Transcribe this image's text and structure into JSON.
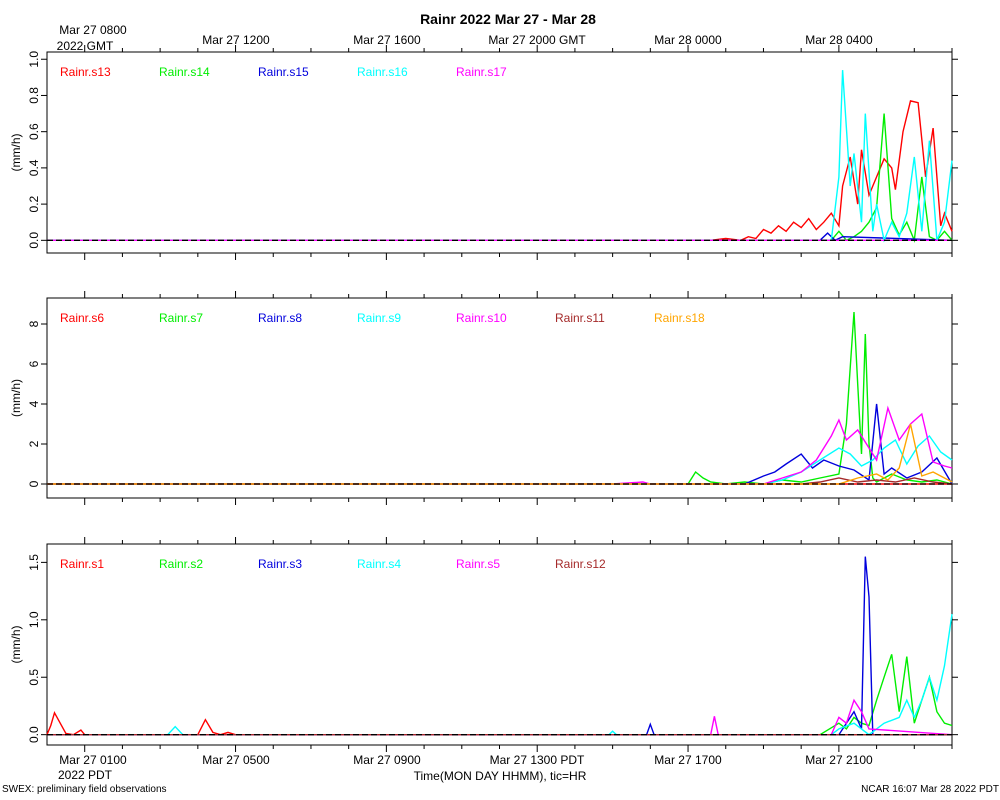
{
  "title": "Rainr 2022 Mar 27 - Mar 28",
  "top_axis_labels": [
    "Mar 27 0800",
    "Mar 27 1200",
    "Mar 27 1600",
    "Mar 27 2000 GMT",
    "Mar 28 0000",
    "Mar 28 0400"
  ],
  "top_axis_year": "2022 GMT",
  "bottom_axis_labels": [
    "Mar 27 0100",
    "Mar 27 0500",
    "Mar 27 0900",
    "Mar 27 1300 PDT",
    "Mar 27 1700",
    "Mar 27 2100"
  ],
  "bottom_axis_year": "2022 PDT",
  "xlabel": "Time(MON DAY HHMM), tic=HR",
  "footer_left": "SWEX: preliminary field observations",
  "footer_right": "NCAR 16:07 Mar 28 2022 PDT",
  "colors": {
    "red": "#ff0000",
    "green": "#00ee00",
    "blue": "#0000dd",
    "cyan": "#00ffff",
    "magenta": "#ff00ff",
    "brown": "#a52a2a",
    "orange": "#ffa500",
    "zero_line": "#000000"
  },
  "chart_data": [
    {
      "type": "line",
      "ylabel": "(mm/h)",
      "ylim": [
        -0.07,
        1.04
      ],
      "yticks": [
        "0.0",
        "0.2",
        "0.4",
        "0.6",
        "0.8",
        "1.0"
      ],
      "ytick_values": [
        0,
        0.2,
        0.4,
        0.6,
        0.8,
        1.0
      ],
      "x_units": "hours since Mar 27 0000 PDT",
      "xlim": [
        0,
        24
      ],
      "series": [
        {
          "name": "Rainr.s13",
          "color": "#ff0000",
          "x": [
            0,
            17.6,
            18.0,
            18.4,
            18.6,
            18.8,
            19.0,
            19.2,
            19.4,
            19.6,
            19.8,
            20.0,
            20.2,
            20.4,
            20.6,
            20.8,
            21.0,
            21.1,
            21.3,
            21.5,
            21.6,
            21.8,
            22.0,
            22.2,
            22.4,
            22.5,
            22.7,
            22.9,
            23.1,
            23.3,
            23.5,
            23.7,
            23.8,
            24.0
          ],
          "y": [
            0,
            0.0,
            0.01,
            0.0,
            0.02,
            0.01,
            0.06,
            0.04,
            0.08,
            0.05,
            0.1,
            0.07,
            0.12,
            0.06,
            0.1,
            0.15,
            0.08,
            0.3,
            0.46,
            0.2,
            0.5,
            0.25,
            0.35,
            0.45,
            0.4,
            0.28,
            0.6,
            0.77,
            0.76,
            0.35,
            0.62,
            0.08,
            0.15,
            0.05
          ]
        },
        {
          "name": "Rainr.s14",
          "color": "#00ee00",
          "x": [
            0,
            20.8,
            21.0,
            21.2,
            21.4,
            21.6,
            21.8,
            22.0,
            22.2,
            22.4,
            22.6,
            22.8,
            23.0,
            23.2,
            23.4,
            23.6,
            23.8,
            24.0
          ],
          "y": [
            0,
            0.0,
            0.05,
            0.0,
            0.02,
            0.05,
            0.1,
            0.18,
            0.7,
            0.12,
            0.03,
            0.1,
            0.0,
            0.35,
            0.02,
            0.0,
            0.05,
            0.0
          ]
        },
        {
          "name": "Rainr.s15",
          "color": "#0000dd",
          "x": [
            0,
            20.5,
            20.7,
            20.9,
            21.1,
            24.0
          ],
          "y": [
            0,
            0.0,
            0.04,
            0.0,
            0.02,
            0.0
          ]
        },
        {
          "name": "Rainr.s16",
          "color": "#00ffff",
          "x": [
            0,
            20.8,
            21.0,
            21.1,
            21.3,
            21.4,
            21.6,
            21.7,
            21.9,
            22.0,
            22.2,
            22.4,
            22.6,
            22.8,
            23.0,
            23.2,
            23.4,
            23.6,
            23.8,
            24.0
          ],
          "y": [
            0,
            0.0,
            0.35,
            0.94,
            0.3,
            0.48,
            0.1,
            0.7,
            0.05,
            0.2,
            0.0,
            0.1,
            0.02,
            0.15,
            0.46,
            0.05,
            0.55,
            0.0,
            0.1,
            0.44
          ]
        },
        {
          "name": "Rainr.s17",
          "color": "#ff00ff",
          "x": [
            0,
            24
          ],
          "y": [
            0,
            0
          ]
        }
      ]
    },
    {
      "type": "line",
      "ylabel": "(mm/h)",
      "ylim": [
        -0.7,
        9.3
      ],
      "yticks": [
        "0",
        "2",
        "4",
        "6",
        "8"
      ],
      "ytick_values": [
        0,
        2,
        4,
        6,
        8
      ],
      "x_units": "hours since Mar 27 0000 PDT",
      "xlim": [
        0,
        24
      ],
      "series": [
        {
          "name": "Rainr.s6",
          "color": "#ff0000",
          "x": [
            0,
            24
          ],
          "y": [
            0,
            0
          ]
        },
        {
          "name": "Rainr.s7",
          "color": "#00ee00",
          "x": [
            0,
            17.0,
            17.2,
            17.4,
            17.6,
            18.0,
            18.5,
            19.0,
            19.5,
            20.0,
            20.5,
            21.0,
            21.2,
            21.4,
            21.5,
            21.6,
            21.7,
            21.8,
            21.9,
            22.0,
            22.4,
            22.8,
            23.2,
            23.6,
            24.0
          ],
          "y": [
            0,
            0.0,
            0.6,
            0.3,
            0.1,
            0.0,
            0.1,
            0.0,
            0.2,
            0.1,
            0.3,
            0.5,
            3.0,
            8.6,
            5.0,
            1.5,
            7.5,
            2.0,
            0.3,
            0.1,
            0.5,
            0.2,
            0.1,
            0.2,
            0.0
          ]
        },
        {
          "name": "Rainr.s8",
          "color": "#0000dd",
          "x": [
            0,
            18.5,
            19.0,
            19.3,
            19.6,
            20.0,
            20.3,
            20.6,
            21.0,
            21.4,
            21.8,
            22.0,
            22.2,
            22.4,
            22.8,
            23.2,
            23.6,
            24.0
          ],
          "y": [
            0,
            0.0,
            0.4,
            0.6,
            1.0,
            1.5,
            0.8,
            1.2,
            0.9,
            0.7,
            0.2,
            4.0,
            0.5,
            0.8,
            0.3,
            0.6,
            1.3,
            0.0
          ]
        },
        {
          "name": "Rainr.s9",
          "color": "#00ffff",
          "x": [
            0,
            19.0,
            19.5,
            20.0,
            20.5,
            21.0,
            21.3,
            21.6,
            21.9,
            22.2,
            22.5,
            22.8,
            23.1,
            23.4,
            23.7,
            24.0
          ],
          "y": [
            0,
            0.0,
            0.2,
            0.6,
            1.2,
            1.8,
            1.5,
            0.9,
            1.2,
            1.8,
            2.2,
            1.0,
            1.9,
            2.4,
            1.6,
            1.2
          ]
        },
        {
          "name": "Rainr.s10",
          "color": "#ff00ff",
          "x": [
            0,
            15.0,
            15.4,
            15.8,
            16.0,
            19.0,
            19.5,
            20.0,
            20.4,
            20.8,
            21.0,
            21.2,
            21.5,
            21.8,
            22.0,
            22.3,
            22.6,
            22.9,
            23.2,
            23.5,
            23.8,
            24.0
          ],
          "y": [
            0,
            0.0,
            0.05,
            0.1,
            0.0,
            0.0,
            0.3,
            0.6,
            1.2,
            2.4,
            3.2,
            2.2,
            2.7,
            1.8,
            1.2,
            3.8,
            2.2,
            3.0,
            3.5,
            1.1,
            0.9,
            0.8
          ]
        },
        {
          "name": "Rainr.s11",
          "color": "#a52a2a",
          "x": [
            0,
            20.0,
            20.5,
            21.0,
            21.5,
            22.0,
            22.5,
            23.0,
            23.5,
            24.0
          ],
          "y": [
            0,
            0.0,
            0.1,
            0.3,
            0.1,
            0.2,
            0.1,
            0.3,
            0.1,
            0.0
          ]
        },
        {
          "name": "Rainr.s18",
          "color": "#ffa500",
          "x": [
            0,
            21.0,
            21.5,
            22.0,
            22.3,
            22.6,
            22.9,
            23.2,
            23.5,
            24.0
          ],
          "y": [
            0,
            0.0,
            0.3,
            0.5,
            0.2,
            0.8,
            3.0,
            0.4,
            0.6,
            0.1
          ]
        }
      ]
    },
    {
      "type": "line",
      "ylabel": "(mm/h)",
      "ylim": [
        -0.09,
        1.66
      ],
      "yticks": [
        "0.0",
        "0.5",
        "1.0",
        "1.5"
      ],
      "ytick_values": [
        0,
        0.5,
        1.0,
        1.5
      ],
      "x_units": "hours since Mar 27 0000 PDT",
      "xlim": [
        0,
        24
      ],
      "series": [
        {
          "name": "Rainr.s1",
          "color": "#ff0000",
          "x": [
            0,
            0.1,
            0.2,
            0.3,
            0.5,
            0.7,
            0.9,
            1.0,
            1.1,
            4.0,
            4.2,
            4.4,
            4.6,
            4.8,
            5.0,
            24.0
          ],
          "y": [
            0,
            0.08,
            0.19,
            0.13,
            0.01,
            0.0,
            0.04,
            0.0,
            0.0,
            0.0,
            0.13,
            0.02,
            0.0,
            0.02,
            0.0,
            0.0
          ]
        },
        {
          "name": "Rainr.s2",
          "color": "#00ee00",
          "x": [
            0,
            20.5,
            21.0,
            21.2,
            21.4,
            21.6,
            21.8,
            22.0,
            22.2,
            22.4,
            22.6,
            22.8,
            23.0,
            23.2,
            23.4,
            23.6,
            23.8,
            24.0
          ],
          "y": [
            0,
            0.0,
            0.1,
            0.05,
            0.15,
            0.1,
            0.08,
            0.3,
            0.5,
            0.7,
            0.2,
            0.68,
            0.1,
            0.3,
            0.5,
            0.2,
            0.1,
            0.08
          ]
        },
        {
          "name": "Rainr.s3",
          "color": "#0000dd",
          "x": [
            0,
            15.9,
            16.0,
            16.1,
            21.0,
            21.2,
            21.4,
            21.6,
            21.7,
            21.8,
            21.9,
            22.0,
            24.0
          ],
          "y": [
            0,
            0.0,
            0.09,
            0.0,
            0.0,
            0.1,
            0.2,
            0.05,
            1.55,
            1.2,
            0.0,
            0.0,
            0.0
          ]
        },
        {
          "name": "Rainr.s4",
          "color": "#00ffff",
          "x": [
            0,
            3.2,
            3.4,
            3.6,
            14.9,
            15.0,
            15.1,
            20.8,
            21.0,
            21.4,
            21.8,
            22.2,
            22.6,
            22.8,
            23.0,
            23.2,
            23.4,
            23.6,
            23.8,
            24.0
          ],
          "y": [
            0,
            0.0,
            0.07,
            0.0,
            0.0,
            0.03,
            0.0,
            0.0,
            0.05,
            0.1,
            0.0,
            0.1,
            0.15,
            0.3,
            0.15,
            0.3,
            0.5,
            0.3,
            0.6,
            1.05
          ]
        },
        {
          "name": "Rainr.s5",
          "color": "#ff00ff",
          "x": [
            0,
            17.6,
            17.7,
            17.8,
            20.8,
            21.0,
            21.2,
            21.4,
            21.6,
            21.8,
            24.0
          ],
          "y": [
            0,
            0.0,
            0.16,
            0.0,
            0.0,
            0.15,
            0.1,
            0.3,
            0.2,
            0.05,
            0.0
          ]
        },
        {
          "name": "Rainr.s12",
          "color": "#a52a2a",
          "x": [
            0,
            24
          ],
          "y": [
            0,
            0
          ]
        }
      ]
    }
  ]
}
